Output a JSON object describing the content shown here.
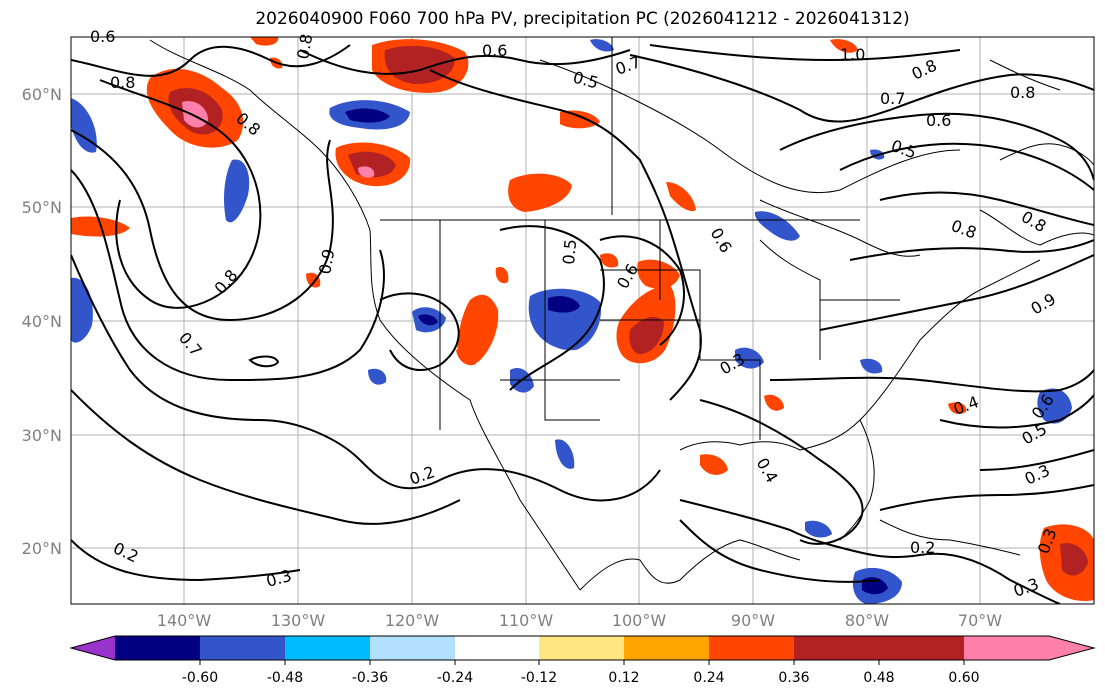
{
  "title": "2026040900 F060 700 hPa PV, precipitation PC (2026041212 - 2026041312)",
  "lat_labels": [
    "60°N",
    "50°N",
    "40°N",
    "30°N",
    "20°N"
  ],
  "lon_labels": [
    "140°W",
    "130°W",
    "120°W",
    "110°W",
    "100°W",
    "90°W",
    "80°W",
    "70°W"
  ],
  "colorbar": {
    "colors": [
      "#9933cc",
      "#000080",
      "#3355cc",
      "#00bbff",
      "#b3e0ff",
      "#ffffff",
      "#ffe680",
      "#ffa500",
      "#ff4500",
      "#b22222",
      "#ff80aa"
    ],
    "ticks": [
      "-0.60",
      "-0.48",
      "-0.36",
      "-0.24",
      "-0.12",
      "0.12",
      "0.24",
      "0.36",
      "0.48",
      "0.60"
    ]
  },
  "contour_labels": [
    "0.6",
    "0.5",
    "0.7",
    "1.0",
    "0.8",
    "0.8",
    "0.7",
    "0.6",
    "0.5",
    "0.8",
    "0.9",
    "0.8",
    "0.6",
    "0.8",
    "0.8",
    "0.7",
    "0.5",
    "0.6",
    "0.3",
    "0.4",
    "0.6",
    "0.5",
    "0.3",
    "0.2",
    "0.4",
    "0.2",
    "0.2",
    "0.3",
    "0.3",
    "0.3",
    "0.9",
    "0.8",
    "0.6",
    "0.8"
  ]
}
